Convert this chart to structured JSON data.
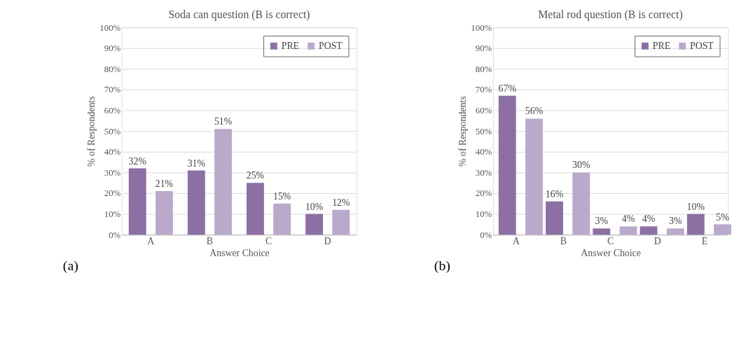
{
  "chart_data": [
    {
      "type": "bar",
      "title": "Soda can question (B is correct)",
      "xlabel": "Answer Choice",
      "ylabel": "% of Respondents",
      "categories": [
        "A",
        "B",
        "C",
        "D"
      ],
      "series": [
        {
          "name": "PRE",
          "color": "#8c6fa3",
          "values": [
            32,
            31,
            25,
            10
          ],
          "value_labels": [
            "32%",
            "31%",
            "25%",
            "10%"
          ]
        },
        {
          "name": "POST",
          "color": "#b9aacb",
          "values": [
            21,
            51,
            15,
            12
          ],
          "value_labels": [
            "21%",
            "51%",
            "15%",
            "12%"
          ]
        }
      ],
      "ylim": [
        0,
        100
      ],
      "yticks": [
        {
          "value": 0,
          "label": "0%"
        },
        {
          "value": 10,
          "label": "10%"
        },
        {
          "value": 20,
          "label": "20%"
        },
        {
          "value": 30,
          "label": "30%"
        },
        {
          "value": 40,
          "label": "40%"
        },
        {
          "value": 50,
          "label": "50%"
        },
        {
          "value": 60,
          "label": "60%"
        },
        {
          "value": 70,
          "label": "70%"
        },
        {
          "value": 80,
          "label": "80%"
        },
        {
          "value": 90,
          "label": "90%"
        },
        {
          "value": 100,
          "label": "100%"
        }
      ],
      "grid": "y",
      "legend": "top right",
      "annotations": [
        "(a)"
      ]
    },
    {
      "type": "bar",
      "title": "Metal rod question (B is correct)",
      "xlabel": "Answer Choice",
      "ylabel": "% of Respondents",
      "categories": [
        "A",
        "B",
        "C",
        "D",
        "E"
      ],
      "series": [
        {
          "name": "PRE",
          "color": "#8c6fa3",
          "values": [
            67,
            16,
            3,
            4,
            10
          ],
          "value_labels": [
            "67%",
            "16%",
            "3%",
            "4%",
            "10%"
          ]
        },
        {
          "name": "POST",
          "color": "#b9aacb",
          "values": [
            56,
            30,
            4,
            3,
            5
          ],
          "value_labels": [
            "56%",
            "30%",
            "4%",
            "3%",
            "5%"
          ]
        }
      ],
      "ylim": [
        0,
        100
      ],
      "yticks": [
        {
          "value": 0,
          "label": "0%"
        },
        {
          "value": 10,
          "label": "10%"
        },
        {
          "value": 20,
          "label": "20%"
        },
        {
          "value": 30,
          "label": "30%"
        },
        {
          "value": 40,
          "label": "40%"
        },
        {
          "value": 50,
          "label": "50%"
        },
        {
          "value": 60,
          "label": "60%"
        },
        {
          "value": 70,
          "label": "70%"
        },
        {
          "value": 80,
          "label": "80%"
        },
        {
          "value": 90,
          "label": "90%"
        },
        {
          "value": 100,
          "label": "100%"
        }
      ],
      "grid": "y",
      "legend": "top right",
      "annotations": [
        "(b)"
      ]
    }
  ]
}
